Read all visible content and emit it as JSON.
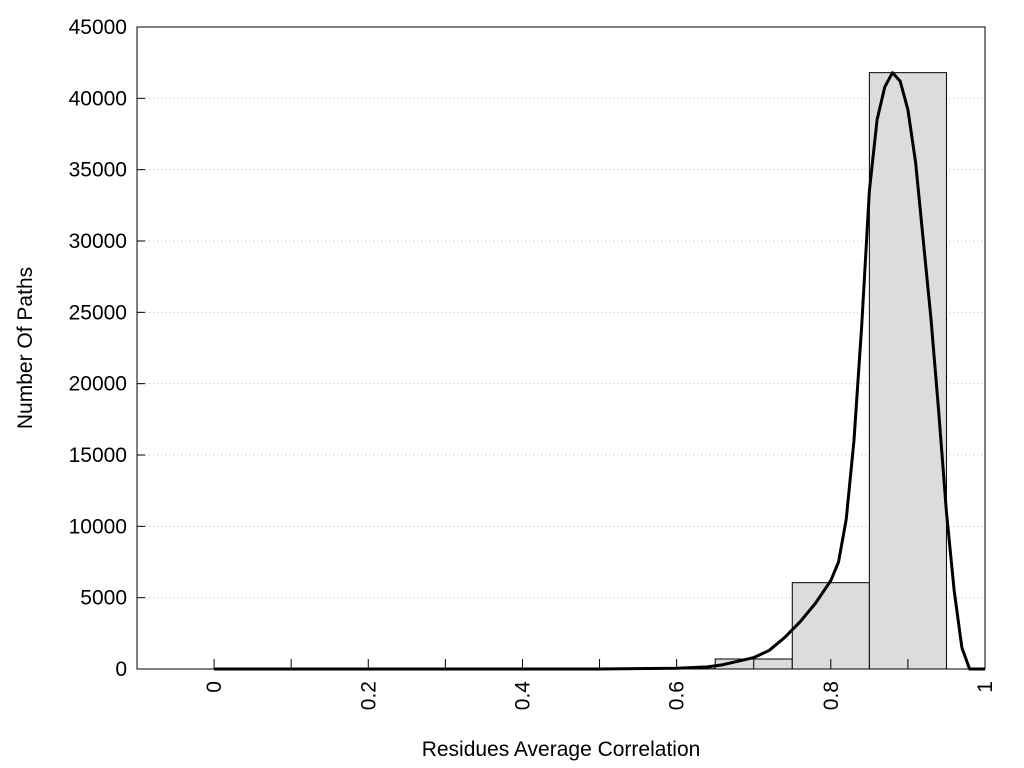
{
  "chart_data": {
    "type": "bar",
    "title": "",
    "xlabel": "Residues Average Correlation",
    "ylabel": "Number Of Paths",
    "xlim": [
      -0.1,
      1.0
    ],
    "ylim": [
      0,
      45000
    ],
    "grid": true,
    "x_ticks": [
      0,
      0.2,
      0.4,
      0.6,
      0.8,
      1
    ],
    "x_tick_labels": [
      "0",
      "0.2",
      "0.4",
      "0.6",
      "0.8",
      "1"
    ],
    "y_ticks": [
      0,
      5000,
      10000,
      15000,
      20000,
      25000,
      30000,
      35000,
      40000,
      45000
    ],
    "y_tick_labels": [
      "0",
      "5000",
      "10000",
      "15000",
      "20000",
      "25000",
      "30000",
      "35000",
      "40000",
      "45000"
    ],
    "bins": [
      {
        "start": -0.05,
        "end": 0.05,
        "value": 0
      },
      {
        "start": 0.05,
        "end": 0.15,
        "value": 0
      },
      {
        "start": 0.15,
        "end": 0.25,
        "value": 0
      },
      {
        "start": 0.25,
        "end": 0.35,
        "value": 0
      },
      {
        "start": 0.35,
        "end": 0.45,
        "value": 0
      },
      {
        "start": 0.45,
        "end": 0.55,
        "value": 0
      },
      {
        "start": 0.55,
        "end": 0.65,
        "value": 20
      },
      {
        "start": 0.65,
        "end": 0.75,
        "value": 700
      },
      {
        "start": 0.75,
        "end": 0.85,
        "value": 6050
      },
      {
        "start": 0.85,
        "end": 0.95,
        "value": 41800
      }
    ],
    "fit_curve": {
      "x": [
        0,
        0.1,
        0.2,
        0.3,
        0.4,
        0.5,
        0.6,
        0.64,
        0.66,
        0.68,
        0.7,
        0.72,
        0.74,
        0.76,
        0.78,
        0.8,
        0.81,
        0.82,
        0.83,
        0.84,
        0.85,
        0.86,
        0.87,
        0.88,
        0.89,
        0.9,
        0.91,
        0.92,
        0.93,
        0.94,
        0.95,
        0.96,
        0.97,
        0.98,
        0.99,
        1.0
      ],
      "y": [
        0,
        0,
        0,
        0,
        0,
        0,
        50,
        150,
        300,
        550,
        800,
        1300,
        2200,
        3300,
        4600,
        6200,
        7500,
        10500,
        16000,
        24000,
        33500,
        38500,
        40800,
        41800,
        41200,
        39200,
        35500,
        30000,
        24500,
        18000,
        11000,
        5500,
        1500,
        0,
        0,
        0
      ]
    },
    "colors": {
      "bar_fill": "#dcdcdc",
      "bar_stroke": "#000000",
      "curve": "#000000",
      "grid": "#bbbbbb"
    }
  }
}
